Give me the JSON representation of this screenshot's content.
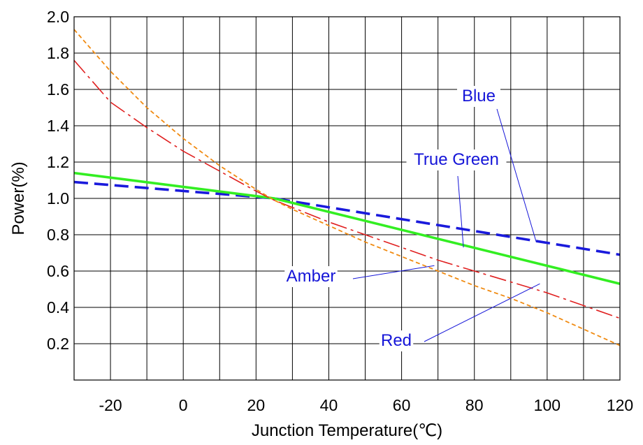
{
  "chart_data": {
    "type": "line",
    "xlabel": "Junction Temperature(℃)",
    "ylabel": "Power(%)",
    "xlim": [
      -30,
      120
    ],
    "ylim": [
      0,
      2.0
    ],
    "x_ticks": [
      -20,
      0,
      20,
      40,
      60,
      80,
      100,
      120
    ],
    "x_tick_labels": [
      "-20",
      "0",
      "20",
      "40",
      "60",
      "80",
      "100",
      "120"
    ],
    "y_ticks": [
      0.2,
      0.4,
      0.6,
      0.8,
      1.0,
      1.2,
      1.4,
      1.6,
      1.8,
      2.0
    ],
    "y_tick_labels": [
      "0.2",
      "0.4",
      "0.6",
      "0.8",
      "1.0",
      "1.2",
      "1.4",
      "1.6",
      "1.8",
      "2.0"
    ],
    "grid": true,
    "series": [
      {
        "name": "Blue",
        "color": "#1a1adc",
        "style": "dashed",
        "x": [
          -30,
          25,
          120
        ],
        "y": [
          1.09,
          1.0,
          0.69
        ]
      },
      {
        "name": "True Green",
        "color": "#33ee22",
        "style": "solid",
        "x": [
          -30,
          25,
          120
        ],
        "y": [
          1.14,
          1.0,
          0.53
        ]
      },
      {
        "name": "Red",
        "color": "#e02020",
        "style": "dashdot",
        "x": [
          -30,
          -20,
          -10,
          0,
          10,
          20,
          25,
          30,
          40,
          50,
          60,
          70,
          80,
          90,
          100,
          110,
          120
        ],
        "y": [
          1.76,
          1.53,
          1.39,
          1.26,
          1.15,
          1.04,
          0.99,
          0.95,
          0.87,
          0.8,
          0.73,
          0.66,
          0.6,
          0.54,
          0.48,
          0.41,
          0.34
        ]
      },
      {
        "name": "Amber",
        "color": "#f08a10",
        "style": "dotted",
        "x": [
          -30,
          -20,
          -10,
          0,
          10,
          20,
          25,
          30,
          40,
          50,
          60,
          70,
          80,
          90,
          100,
          110,
          120
        ],
        "y": [
          1.93,
          1.7,
          1.5,
          1.33,
          1.18,
          1.05,
          0.99,
          0.94,
          0.85,
          0.76,
          0.68,
          0.6,
          0.52,
          0.45,
          0.37,
          0.28,
          0.19
        ]
      }
    ],
    "annotations": [
      {
        "text": "Blue",
        "color": "#1515d8",
        "target": {
          "x": 97,
          "y": 0.76
        }
      },
      {
        "text": "True Green",
        "color": "#1515d8",
        "target": {
          "x": 77,
          "y": 0.73
        }
      },
      {
        "text": "Amber",
        "color": "#1515d8",
        "target": {
          "x": 69,
          "y": 0.63
        }
      },
      {
        "text": "Red",
        "color": "#1515d8",
        "target": {
          "x": 98,
          "y": 0.53
        }
      }
    ]
  }
}
